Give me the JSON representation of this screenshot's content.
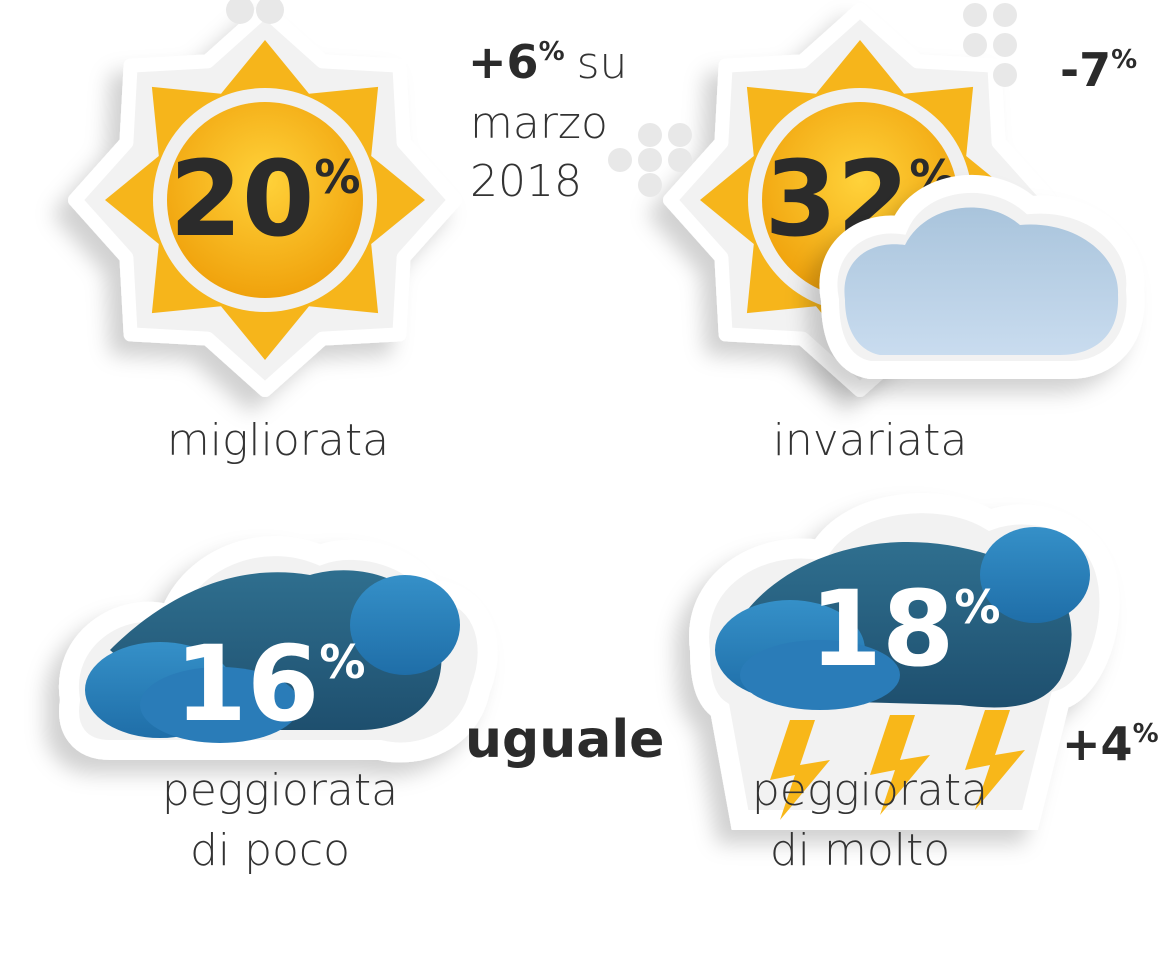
{
  "items": [
    {
      "value": 20,
      "unit": "%",
      "label": [
        "migliorata"
      ],
      "change": {
        "text": "+6",
        "unit": "%"
      },
      "note": [
        "su",
        "marzo",
        "2018"
      ]
    },
    {
      "value": 32,
      "unit": "%",
      "label": [
        "invariata"
      ],
      "change": {
        "text": "-7",
        "unit": "%"
      }
    },
    {
      "value": 16,
      "unit": "%",
      "label": [
        "peggiorata",
        "di poco"
      ],
      "change": {
        "text": "uguale"
      }
    },
    {
      "value": 18,
      "unit": "%",
      "label": [
        "peggiorata",
        "di molto"
      ],
      "change": {
        "text": "+4",
        "unit": "%"
      }
    }
  ]
}
